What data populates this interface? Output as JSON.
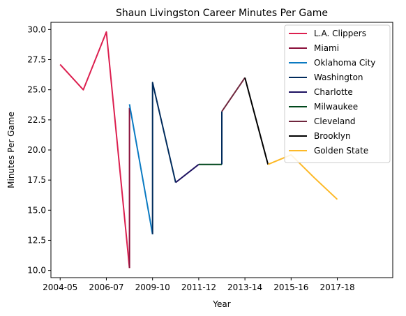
{
  "chart_data": {
    "type": "line",
    "title": "Shaun Livingston Career Minutes Per Game",
    "xlabel": "Year",
    "ylabel": "Minutes Per Game",
    "xlim": [
      2003.6,
      2018.4
    ],
    "ylim": [
      9.4,
      30.6
    ],
    "xticks": [
      {
        "value": 2004,
        "label": "2004-05"
      },
      {
        "value": 2006,
        "label": "2006-07"
      },
      {
        "value": 2008,
        "label": "2009-10"
      },
      {
        "value": 2010,
        "label": "2011-12"
      },
      {
        "value": 2012,
        "label": "2013-14"
      },
      {
        "value": 2014,
        "label": "2015-16"
      },
      {
        "value": 2016,
        "label": "2017-18"
      }
    ],
    "yticks": [
      10.0,
      12.5,
      15.0,
      17.5,
      20.0,
      22.5,
      25.0,
      27.5,
      30.0
    ],
    "ytick_labels": [
      "10.0",
      "12.5",
      "15.0",
      "17.5",
      "20.0",
      "22.5",
      "25.0",
      "27.5",
      "30.0"
    ],
    "legend_position": "top-right",
    "grid": false,
    "series": [
      {
        "name": "L.A. Clippers",
        "color": "#dc1f4f",
        "x": [
          2004.0,
          2005.0,
          2006.0,
          2007.0
        ],
        "y": [
          27.1,
          25.0,
          29.8,
          10.2
        ]
      },
      {
        "name": "Miami",
        "color": "#8a0f3a",
        "x": [
          2007.0,
          2007.0
        ],
        "y": [
          10.2,
          23.5
        ]
      },
      {
        "name": "Oklahoma City",
        "color": "#0a7ac2",
        "x": [
          2007.0,
          2008.0
        ],
        "y": [
          23.8,
          13.0
        ]
      },
      {
        "name": "Washington",
        "color": "#002b5c",
        "x": [
          2008.0,
          2008.0,
          2009.0
        ],
        "y": [
          13.0,
          25.6,
          17.3
        ]
      },
      {
        "name": "Charlotte",
        "color": "#1d1160",
        "x": [
          2009.0,
          2010.0
        ],
        "y": [
          17.3,
          18.8
        ]
      },
      {
        "name": "Milwaukee",
        "color": "#00471b",
        "x": [
          2010.0,
          2011.0
        ],
        "y": [
          18.8,
          18.8
        ]
      },
      {
        "name": "Washington",
        "color": "#002b5c",
        "x": [
          2011.0,
          2011.0
        ],
        "y": [
          18.8,
          23.2
        ]
      },
      {
        "name": "Cleveland",
        "color": "#6f263d",
        "x": [
          2011.0,
          2012.0
        ],
        "y": [
          23.2,
          26.0
        ]
      },
      {
        "name": "Brooklyn",
        "color": "#000000",
        "x": [
          2012.0,
          2013.0
        ],
        "y": [
          26.0,
          18.8
        ]
      },
      {
        "name": "Golden State",
        "color": "#fdb927",
        "x": [
          2013.0,
          2014.0,
          2015.0,
          2016.0
        ],
        "y": [
          18.8,
          19.6,
          17.7,
          15.9
        ]
      }
    ],
    "legend": [
      {
        "name": "L.A. Clippers",
        "color": "#dc1f4f"
      },
      {
        "name": "Miami",
        "color": "#8a0f3a"
      },
      {
        "name": "Oklahoma City",
        "color": "#0a7ac2"
      },
      {
        "name": "Washington",
        "color": "#002b5c"
      },
      {
        "name": "Charlotte",
        "color": "#1d1160"
      },
      {
        "name": "Milwaukee",
        "color": "#00471b"
      },
      {
        "name": "Cleveland",
        "color": "#6f263d"
      },
      {
        "name": "Brooklyn",
        "color": "#000000"
      },
      {
        "name": "Golden State",
        "color": "#fdb927"
      }
    ]
  }
}
